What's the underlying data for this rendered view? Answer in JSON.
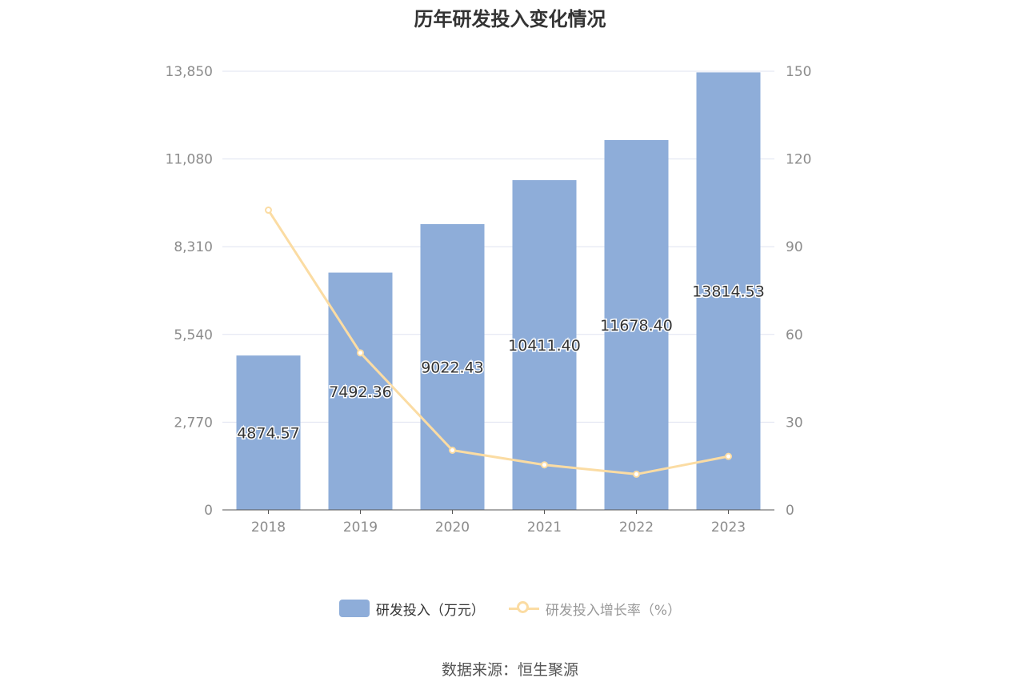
{
  "chart_data": {
    "type": "bar",
    "title": "历年研发投入变化情况",
    "categories": [
      "2018",
      "2019",
      "2020",
      "2021",
      "2022",
      "2023"
    ],
    "series": [
      {
        "name": "研发投入（万元）",
        "type": "bar",
        "axis": "left",
        "values": [
          4874.57,
          7492.36,
          9022.43,
          10411.4,
          11678.4,
          13814.53
        ],
        "labels": [
          "4874.57",
          "7492.36",
          "9022.43",
          "10411.40",
          "11678.40",
          "13814.53"
        ],
        "color": "#8eadd9"
      },
      {
        "name": "研发投入增长率（%）",
        "type": "line",
        "axis": "right",
        "values": [
          102.5,
          53.7,
          20.4,
          15.4,
          12.2,
          18.3
        ],
        "color": "#fbdca3"
      }
    ],
    "y_left": {
      "min": 0,
      "max": 13850,
      "ticks": [
        "0",
        "2,770",
        "5,540",
        "8,310",
        "11,080",
        "13,850"
      ]
    },
    "y_right": {
      "min": 0,
      "max": 150,
      "ticks": [
        "0",
        "30",
        "60",
        "90",
        "120",
        "150"
      ]
    },
    "grid": true,
    "legend_position": "bottom"
  },
  "source_text": "数据来源：恒生聚源"
}
